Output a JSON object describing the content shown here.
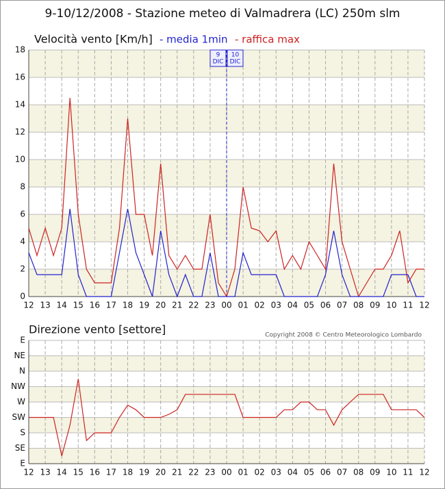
{
  "chart_data": [
    {
      "type": "line",
      "title": "9-10/12/2008 - Stazione meteo di Valmadrera (LC) 250m slm",
      "subtitle": "Velocità vento [Km/h]",
      "x": [
        12,
        12.5,
        13,
        13.5,
        14,
        14.5,
        15,
        15.5,
        16,
        16.5,
        17,
        17.5,
        18,
        18.5,
        19,
        19.5,
        20,
        20.5,
        21,
        21.5,
        22,
        22.5,
        23,
        23.5,
        24,
        24.5,
        25,
        25.5,
        26,
        26.5,
        27,
        27.5,
        28,
        28.5,
        29,
        29.5,
        30,
        30.5,
        31,
        31.5,
        32,
        32.5,
        33,
        33.5,
        34,
        34.5,
        35,
        35.5,
        36
      ],
      "series": [
        {
          "name": "- media 1min",
          "color": "#2222cc",
          "values": [
            3.2,
            1.6,
            1.6,
            1.6,
            1.6,
            6.4,
            1.6,
            0,
            0,
            0,
            0,
            3.2,
            6.4,
            3.2,
            1.6,
            0,
            4.8,
            1.6,
            0,
            1.6,
            0,
            0,
            3.2,
            0,
            0,
            0,
            3.2,
            1.6,
            1.6,
            1.6,
            1.6,
            0,
            0,
            0,
            0,
            0,
            1.6,
            4.8,
            1.6,
            0,
            0,
            0,
            0,
            0,
            1.6,
            1.6,
            1.6,
            0,
            0
          ]
        },
        {
          "name": "- raffica max",
          "color": "#cc2222",
          "values": [
            5,
            3,
            5,
            3,
            5,
            14.5,
            6,
            2,
            1,
            1,
            1,
            5,
            13,
            6,
            6,
            3,
            9.7,
            3,
            2,
            3,
            2,
            2,
            6,
            1,
            0,
            2,
            8,
            5,
            4.8,
            4,
            4.8,
            2,
            3,
            2,
            4,
            3,
            2,
            9.7,
            4,
            2,
            0,
            1,
            2,
            2,
            3,
            4.8,
            1,
            2,
            2
          ]
        }
      ],
      "xlim": [
        12,
        36
      ],
      "xticks": [
        12,
        13,
        14,
        15,
        16,
        17,
        18,
        19,
        20,
        21,
        22,
        23,
        {
          "value": 24,
          "label": "00"
        },
        {
          "value": 25,
          "label": "01"
        },
        {
          "value": 26,
          "label": "02"
        },
        {
          "value": 27,
          "label": "03"
        },
        {
          "value": 28,
          "label": "04"
        },
        {
          "value": 29,
          "label": "05"
        },
        {
          "value": 30,
          "label": "06"
        },
        {
          "value": 31,
          "label": "07"
        },
        {
          "value": 32,
          "label": "08"
        },
        {
          "value": 33,
          "label": "09"
        },
        {
          "value": 34,
          "label": "10"
        },
        {
          "value": 35,
          "label": "11"
        },
        {
          "value": 36,
          "label": "12"
        }
      ],
      "ylim": [
        0,
        18
      ],
      "yticks": [
        0,
        2,
        4,
        6,
        8,
        10,
        12,
        14,
        16,
        18
      ],
      "grid": true,
      "day_change": {
        "x": 24,
        "before": [
          "9",
          "DIC"
        ],
        "after": [
          "10",
          "DIC"
        ]
      }
    },
    {
      "type": "line",
      "subtitle": "Direzione vento [settore]",
      "copyright": "Copyright 2008 © Centro Meteorologico Lombardo",
      "x": [
        12,
        12.5,
        13,
        13.5,
        14,
        14.5,
        15,
        15.5,
        16,
        16.5,
        17,
        17.5,
        18,
        18.5,
        19,
        19.5,
        20,
        20.5,
        21,
        21.5,
        22,
        22.5,
        23,
        23.5,
        24,
        24.5,
        25,
        25.5,
        26,
        26.5,
        27,
        27.5,
        28,
        28.5,
        29,
        29.5,
        30,
        30.5,
        31,
        31.5,
        32,
        32.5,
        33,
        33.5,
        34,
        34.5,
        35,
        35.5,
        36
      ],
      "series": [
        {
          "color": "#cc2222",
          "values": [
            3,
            3,
            3,
            3,
            0.5,
            2.5,
            5.5,
            1.5,
            2,
            2,
            2,
            3,
            3.8,
            3.5,
            3,
            3,
            3,
            3.2,
            3.5,
            4.5,
            4.5,
            4.5,
            4.5,
            4.5,
            4.5,
            4.5,
            3,
            3,
            3,
            3,
            3,
            3.5,
            3.5,
            4,
            4,
            3.5,
            3.5,
            2.5,
            3.5,
            4,
            4.5,
            4.5,
            4.5,
            4.5,
            3.5,
            3.5,
            3.5,
            3.5,
            3
          ]
        }
      ],
      "xlim": [
        12,
        36
      ],
      "xticks": [
        12,
        13,
        14,
        15,
        16,
        17,
        18,
        19,
        20,
        21,
        22,
        23,
        {
          "value": 24,
          "label": "00"
        },
        {
          "value": 25,
          "label": "01"
        },
        {
          "value": 26,
          "label": "02"
        },
        {
          "value": 27,
          "label": "03"
        },
        {
          "value": 28,
          "label": "04"
        },
        {
          "value": 29,
          "label": "05"
        },
        {
          "value": 30,
          "label": "06"
        },
        {
          "value": 31,
          "label": "07"
        },
        {
          "value": 32,
          "label": "08"
        },
        {
          "value": 33,
          "label": "09"
        },
        {
          "value": 34,
          "label": "10"
        },
        {
          "value": 35,
          "label": "11"
        },
        {
          "value": 36,
          "label": "12"
        }
      ],
      "ylim": [
        0,
        8
      ],
      "yticks": [
        {
          "value": 0,
          "label": "E"
        },
        {
          "value": 1,
          "label": "SE"
        },
        {
          "value": 2,
          "label": "S"
        },
        {
          "value": 3,
          "label": "SW"
        },
        {
          "value": 4,
          "label": "W"
        },
        {
          "value": 5,
          "label": "NW"
        },
        {
          "value": 6,
          "label": "N"
        },
        {
          "value": 7,
          "label": "NE"
        },
        {
          "value": 8,
          "label": "E"
        }
      ],
      "grid": true
    }
  ]
}
